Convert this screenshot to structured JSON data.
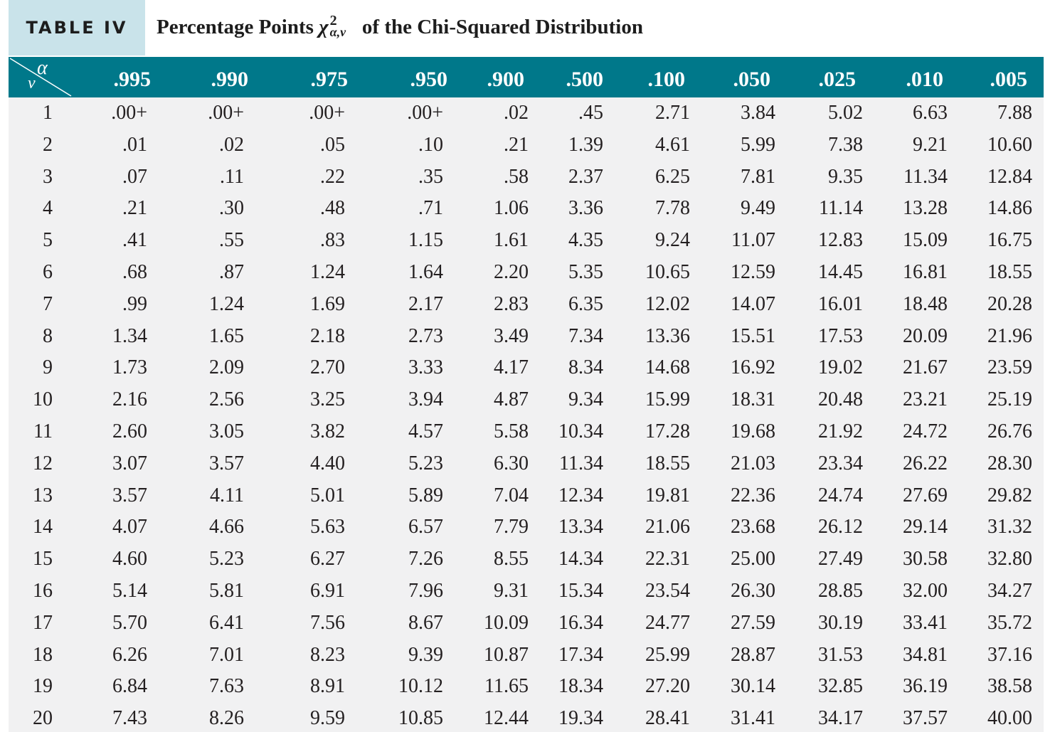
{
  "title": {
    "table_label": "TABLE IV",
    "prefix": "Percentage Points",
    "symbol": "χ",
    "superscript": "2",
    "subscript": "α,ν",
    "suffix": "of the Chi-Squared Distribution"
  },
  "corner": {
    "alpha": "α",
    "nu": "ν"
  },
  "columns": [
    ".995",
    ".990",
    ".975",
    ".950",
    ".900",
    ".500",
    ".100",
    ".050",
    ".025",
    ".010",
    ".005"
  ],
  "rows": [
    {
      "nu": "1",
      "values": [
        ".00+",
        ".00+",
        ".00+",
        ".00+",
        ".02",
        ".45",
        "2.71",
        "3.84",
        "5.02",
        "6.63",
        "7.88"
      ]
    },
    {
      "nu": "2",
      "values": [
        ".01",
        ".02",
        ".05",
        ".10",
        ".21",
        "1.39",
        "4.61",
        "5.99",
        "7.38",
        "9.21",
        "10.60"
      ]
    },
    {
      "nu": "3",
      "values": [
        ".07",
        ".11",
        ".22",
        ".35",
        ".58",
        "2.37",
        "6.25",
        "7.81",
        "9.35",
        "11.34",
        "12.84"
      ]
    },
    {
      "nu": "4",
      "values": [
        ".21",
        ".30",
        ".48",
        ".71",
        "1.06",
        "3.36",
        "7.78",
        "9.49",
        "11.14",
        "13.28",
        "14.86"
      ]
    },
    {
      "nu": "5",
      "values": [
        ".41",
        ".55",
        ".83",
        "1.15",
        "1.61",
        "4.35",
        "9.24",
        "11.07",
        "12.83",
        "15.09",
        "16.75"
      ]
    },
    {
      "nu": "6",
      "values": [
        ".68",
        ".87",
        "1.24",
        "1.64",
        "2.20",
        "5.35",
        "10.65",
        "12.59",
        "14.45",
        "16.81",
        "18.55"
      ]
    },
    {
      "nu": "7",
      "values": [
        ".99",
        "1.24",
        "1.69",
        "2.17",
        "2.83",
        "6.35",
        "12.02",
        "14.07",
        "16.01",
        "18.48",
        "20.28"
      ]
    },
    {
      "nu": "8",
      "values": [
        "1.34",
        "1.65",
        "2.18",
        "2.73",
        "3.49",
        "7.34",
        "13.36",
        "15.51",
        "17.53",
        "20.09",
        "21.96"
      ]
    },
    {
      "nu": "9",
      "values": [
        "1.73",
        "2.09",
        "2.70",
        "3.33",
        "4.17",
        "8.34",
        "14.68",
        "16.92",
        "19.02",
        "21.67",
        "23.59"
      ]
    },
    {
      "nu": "10",
      "values": [
        "2.16",
        "2.56",
        "3.25",
        "3.94",
        "4.87",
        "9.34",
        "15.99",
        "18.31",
        "20.48",
        "23.21",
        "25.19"
      ]
    },
    {
      "nu": "11",
      "values": [
        "2.60",
        "3.05",
        "3.82",
        "4.57",
        "5.58",
        "10.34",
        "17.28",
        "19.68",
        "21.92",
        "24.72",
        "26.76"
      ]
    },
    {
      "nu": "12",
      "values": [
        "3.07",
        "3.57",
        "4.40",
        "5.23",
        "6.30",
        "11.34",
        "18.55",
        "21.03",
        "23.34",
        "26.22",
        "28.30"
      ]
    },
    {
      "nu": "13",
      "values": [
        "3.57",
        "4.11",
        "5.01",
        "5.89",
        "7.04",
        "12.34",
        "19.81",
        "22.36",
        "24.74",
        "27.69",
        "29.82"
      ]
    },
    {
      "nu": "14",
      "values": [
        "4.07",
        "4.66",
        "5.63",
        "6.57",
        "7.79",
        "13.34",
        "21.06",
        "23.68",
        "26.12",
        "29.14",
        "31.32"
      ]
    },
    {
      "nu": "15",
      "values": [
        "4.60",
        "5.23",
        "6.27",
        "7.26",
        "8.55",
        "14.34",
        "22.31",
        "25.00",
        "27.49",
        "30.58",
        "32.80"
      ]
    },
    {
      "nu": "16",
      "values": [
        "5.14",
        "5.81",
        "6.91",
        "7.96",
        "9.31",
        "15.34",
        "23.54",
        "26.30",
        "28.85",
        "32.00",
        "34.27"
      ]
    },
    {
      "nu": "17",
      "values": [
        "5.70",
        "6.41",
        "7.56",
        "8.67",
        "10.09",
        "16.34",
        "24.77",
        "27.59",
        "30.19",
        "33.41",
        "35.72"
      ]
    },
    {
      "nu": "18",
      "values": [
        "6.26",
        "7.01",
        "8.23",
        "9.39",
        "10.87",
        "17.34",
        "25.99",
        "28.87",
        "31.53",
        "34.81",
        "37.16"
      ]
    },
    {
      "nu": "19",
      "values": [
        "6.84",
        "7.63",
        "8.91",
        "10.12",
        "11.65",
        "18.34",
        "27.20",
        "30.14",
        "32.85",
        "36.19",
        "38.58"
      ]
    },
    {
      "nu": "20",
      "values": [
        "7.43",
        "8.26",
        "9.59",
        "10.85",
        "12.44",
        "19.34",
        "28.41",
        "31.41",
        "34.17",
        "37.57",
        "40.00"
      ]
    }
  ],
  "colors": {
    "header_bg": "#00788a",
    "label_bg": "#c9e3ea",
    "body_bg": "#f1f1f2",
    "text": "#231f20"
  }
}
